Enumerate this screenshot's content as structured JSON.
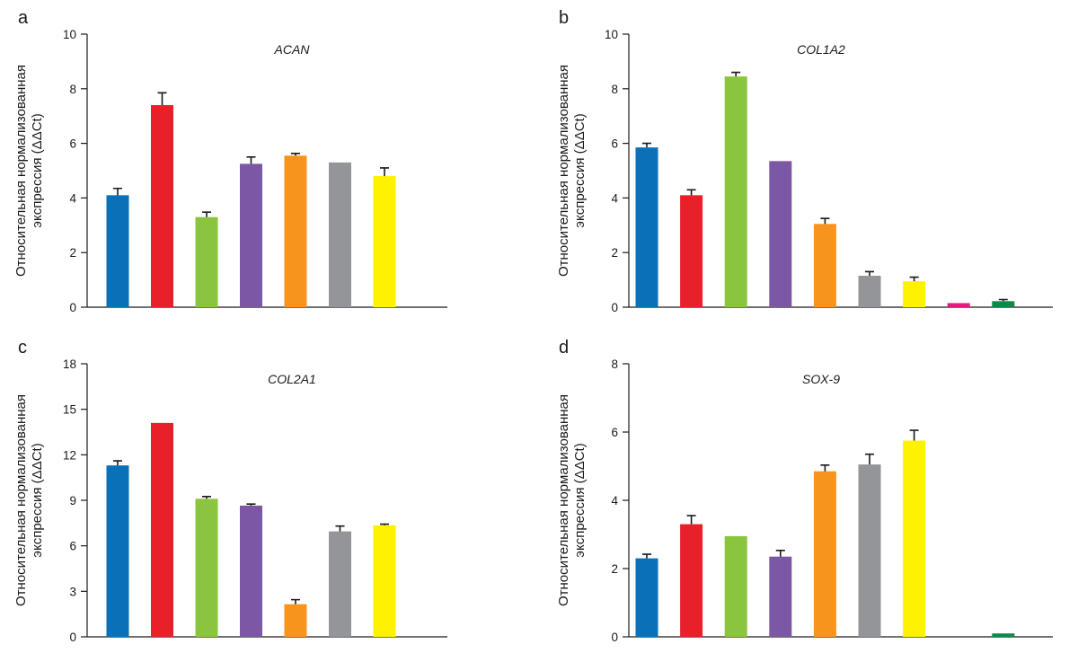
{
  "colors": [
    "#0a70b8",
    "#e8202a",
    "#8bc53f",
    "#7b57a6",
    "#f7941d",
    "#939598",
    "#fff200",
    "#e6197e",
    "#0d8a4a"
  ],
  "ylabel_lines": [
    "Относительная нормализованная",
    "экспрессия (ΔΔCt)"
  ],
  "chart_data": [
    {
      "type": "bar",
      "panel": "a",
      "title": "ACAN",
      "ylim": [
        0,
        10
      ],
      "yticks": [
        0,
        2,
        4,
        6,
        8,
        10
      ],
      "slot_count": 9,
      "bars": [
        {
          "slot": 0,
          "color_index": 0,
          "value": 4.1,
          "error": 0.25
        },
        {
          "slot": 1,
          "color_index": 1,
          "value": 7.4,
          "error": 0.45
        },
        {
          "slot": 2,
          "color_index": 2,
          "value": 3.3,
          "error": 0.18
        },
        {
          "slot": 3,
          "color_index": 3,
          "value": 5.25,
          "error": 0.25
        },
        {
          "slot": 4,
          "color_index": 4,
          "value": 5.55,
          "error": 0.08
        },
        {
          "slot": 5,
          "color_index": 5,
          "value": 5.3,
          "error": 0
        },
        {
          "slot": 6,
          "color_index": 6,
          "value": 4.8,
          "error": 0.3
        }
      ]
    },
    {
      "type": "bar",
      "panel": "b",
      "title": "COL1A2",
      "ylim": [
        0,
        10
      ],
      "yticks": [
        0,
        2,
        4,
        6,
        8,
        10
      ],
      "slot_count": 9,
      "bars": [
        {
          "slot": 0,
          "color_index": 0,
          "value": 5.85,
          "error": 0.15
        },
        {
          "slot": 1,
          "color_index": 1,
          "value": 4.1,
          "error": 0.2
        },
        {
          "slot": 2,
          "color_index": 2,
          "value": 8.45,
          "error": 0.15
        },
        {
          "slot": 3,
          "color_index": 3,
          "value": 5.35,
          "error": 0
        },
        {
          "slot": 4,
          "color_index": 4,
          "value": 3.05,
          "error": 0.2
        },
        {
          "slot": 5,
          "color_index": 5,
          "value": 1.15,
          "error": 0.15
        },
        {
          "slot": 6,
          "color_index": 6,
          "value": 0.95,
          "error": 0.15
        },
        {
          "slot": 7,
          "color_index": 7,
          "value": 0.15,
          "error": 0
        },
        {
          "slot": 8,
          "color_index": 8,
          "value": 0.22,
          "error": 0.06
        }
      ]
    },
    {
      "type": "bar",
      "panel": "c",
      "title": "COL2A1",
      "ylim": [
        0,
        18
      ],
      "yticks": [
        0,
        3,
        6,
        9,
        12,
        15,
        18
      ],
      "slot_count": 9,
      "bars": [
        {
          "slot": 0,
          "color_index": 0,
          "value": 11.3,
          "error": 0.3
        },
        {
          "slot": 1,
          "color_index": 1,
          "value": 14.1,
          "error": 0
        },
        {
          "slot": 2,
          "color_index": 2,
          "value": 9.1,
          "error": 0.15
        },
        {
          "slot": 3,
          "color_index": 3,
          "value": 8.65,
          "error": 0.1
        },
        {
          "slot": 4,
          "color_index": 4,
          "value": 2.15,
          "error": 0.3
        },
        {
          "slot": 5,
          "color_index": 5,
          "value": 6.95,
          "error": 0.35
        },
        {
          "slot": 6,
          "color_index": 6,
          "value": 7.35,
          "error": 0.08
        }
      ]
    },
    {
      "type": "bar",
      "panel": "d",
      "title": "SOX-9",
      "ylim": [
        0,
        8
      ],
      "yticks": [
        0,
        2,
        4,
        6,
        8
      ],
      "slot_count": 9,
      "bars": [
        {
          "slot": 0,
          "color_index": 0,
          "value": 2.3,
          "error": 0.12
        },
        {
          "slot": 1,
          "color_index": 1,
          "value": 3.3,
          "error": 0.25
        },
        {
          "slot": 2,
          "color_index": 2,
          "value": 2.95,
          "error": 0
        },
        {
          "slot": 3,
          "color_index": 3,
          "value": 2.35,
          "error": 0.18
        },
        {
          "slot": 4,
          "color_index": 4,
          "value": 4.85,
          "error": 0.18
        },
        {
          "slot": 5,
          "color_index": 5,
          "value": 5.05,
          "error": 0.3
        },
        {
          "slot": 6,
          "color_index": 6,
          "value": 5.75,
          "error": 0.3
        },
        {
          "slot": 8,
          "color_index": 8,
          "value": 0.1,
          "error": 0
        }
      ]
    }
  ]
}
